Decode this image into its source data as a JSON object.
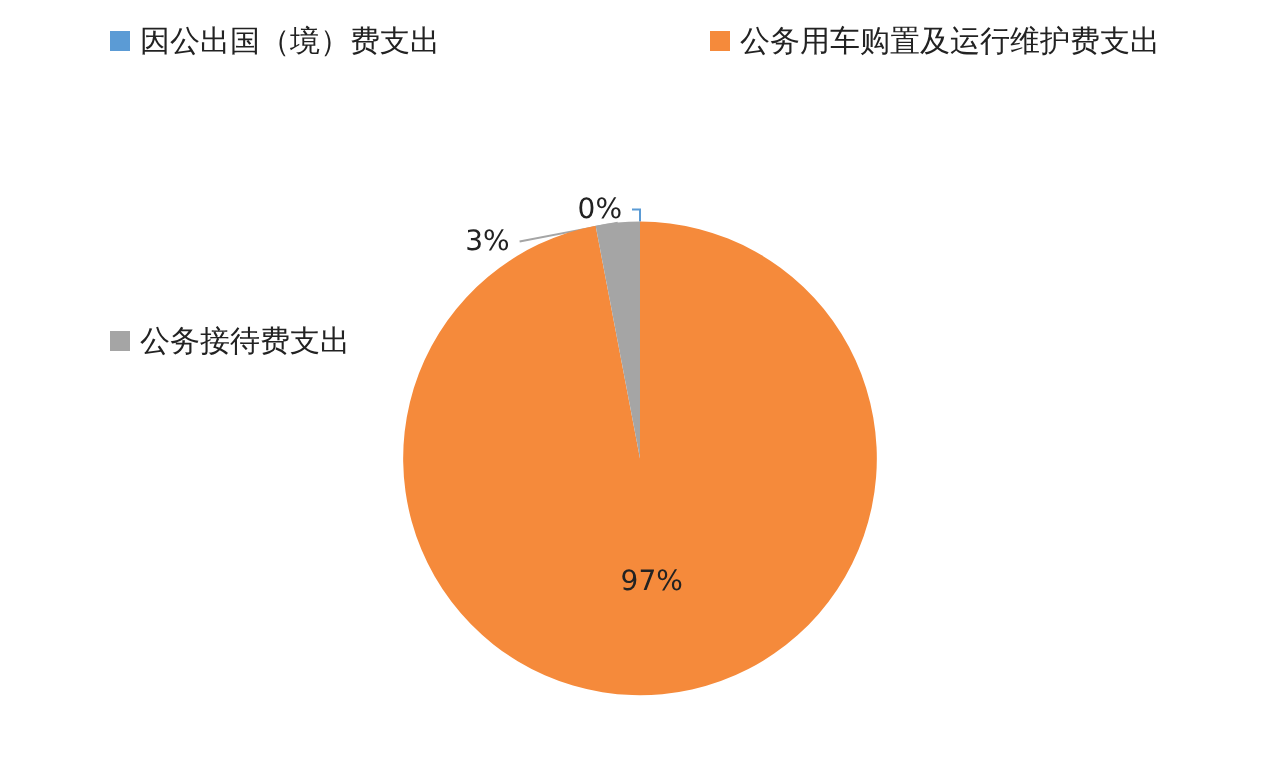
{
  "chart_data": {
    "type": "pie",
    "categories": [
      "因公出国（境）费支出",
      "公务用车购置及运行维护费支出",
      "公务接待费支出"
    ],
    "values": [
      0,
      97,
      3
    ],
    "colors": [
      "#5b9bd5",
      "#f58a3b",
      "#a5a5a5"
    ],
    "value_labels": [
      "0%",
      "97%",
      "3%"
    ],
    "legend": "top"
  }
}
